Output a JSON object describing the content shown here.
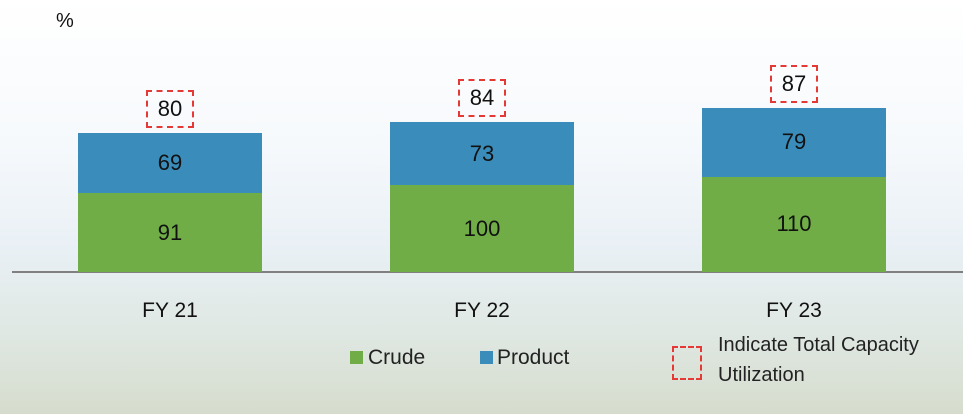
{
  "chart_data": {
    "type": "stacked_bar",
    "y_label": "%",
    "categories": [
      "FY 21",
      "FY 22",
      "FY 23"
    ],
    "series": [
      {
        "name": "Crude",
        "color": "#70ad47",
        "values": [
          91,
          100,
          110
        ]
      },
      {
        "name": "Product",
        "color": "#3a8dba",
        "values": [
          69,
          73,
          79
        ]
      }
    ],
    "annotation": {
      "name": "Indicate Total Capacity Utilization",
      "color": "#e53935",
      "values": [
        80,
        84,
        87
      ]
    },
    "legend": "bottom"
  }
}
